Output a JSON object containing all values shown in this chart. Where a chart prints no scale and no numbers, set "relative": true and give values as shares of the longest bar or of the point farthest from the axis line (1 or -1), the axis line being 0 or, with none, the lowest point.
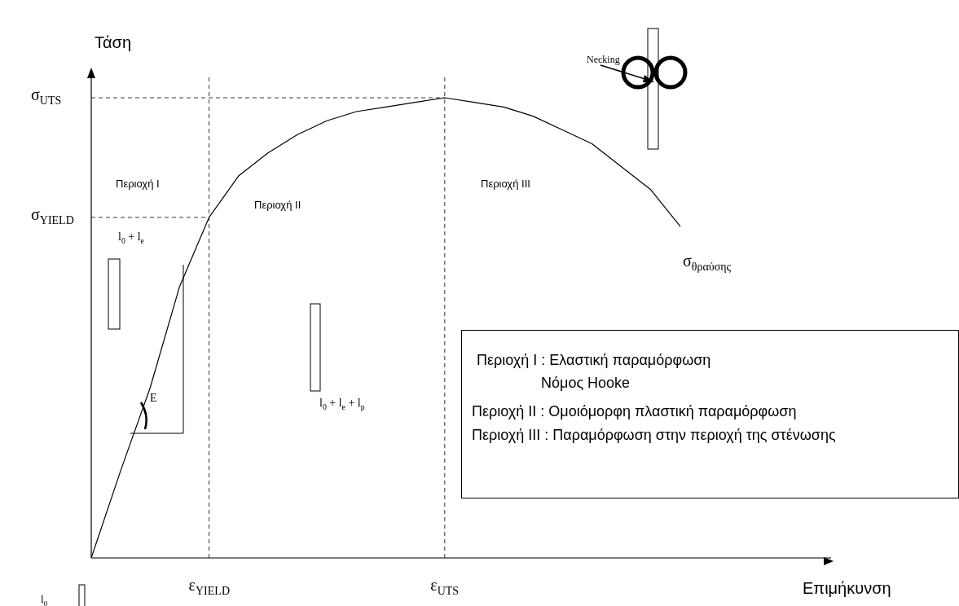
{
  "chart_data": {
    "type": "line",
    "relative": true,
    "ylabel": "Τάση",
    "categories": [
      null,
      null,
      null,
      null,
      "ε$_{YIELD}$",
      null,
      null,
      null,
      null,
      null,
      null,
      null,
      "ε$_{UTS}$",
      null,
      null,
      null,
      null,
      null,
      null,
      null,
      null
    ],
    "series": [
      {
        "color": "#000000",
        "values": [
          0,
          0.19,
          0.37,
          0.59,
          0.74,
          0.83,
          0.88,
          0.92,
          0.95,
          0.97,
          0.98,
          0.99,
          1,
          0.99,
          0.98,
          0.96,
          0.93,
          0.9,
          0.85,
          0.8,
          0.72
        ]
      }
    ],
    "marker": "none",
    "line_style": "solid",
    "ref_lines": [
      {
        "axis": "x",
        "value": "ε$_{YIELD}$",
        "line_style": "dashed"
      },
      {
        "axis": "x",
        "value": "ε$_{UTS}$",
        "line_style": "dashed"
      },
      {
        "axis": "y",
        "value": 0.74,
        "label": "σ$_{YIELD}$",
        "line_style": "dashed"
      },
      {
        "axis": "y",
        "value": 1,
        "label": "σ$_{UTS}$",
        "line_style": "dashed"
      }
    ],
    "annotations": [
      "Necking",
      "l$_{0}$ + l$_{e}$",
      "l$_{0}$ + l$_{e}$ + l$_{p}$",
      "l$_{0}$",
      "E",
      "σ$_{θραύσης}$",
      "Περιοχή I",
      "Περιοχή II",
      "Περιοχή III",
      "Επιμήκυνση",
      "Περιοχή I : Ελαστική παραμόρφωση",
      "Νόμος Hooke",
      "Περιοχή II : Ομοιόμορφη πλαστική παραμόρφωση",
      "Περιοχή III : Παραμόρφωση στην περιοχή της στένωσης"
    ]
  }
}
